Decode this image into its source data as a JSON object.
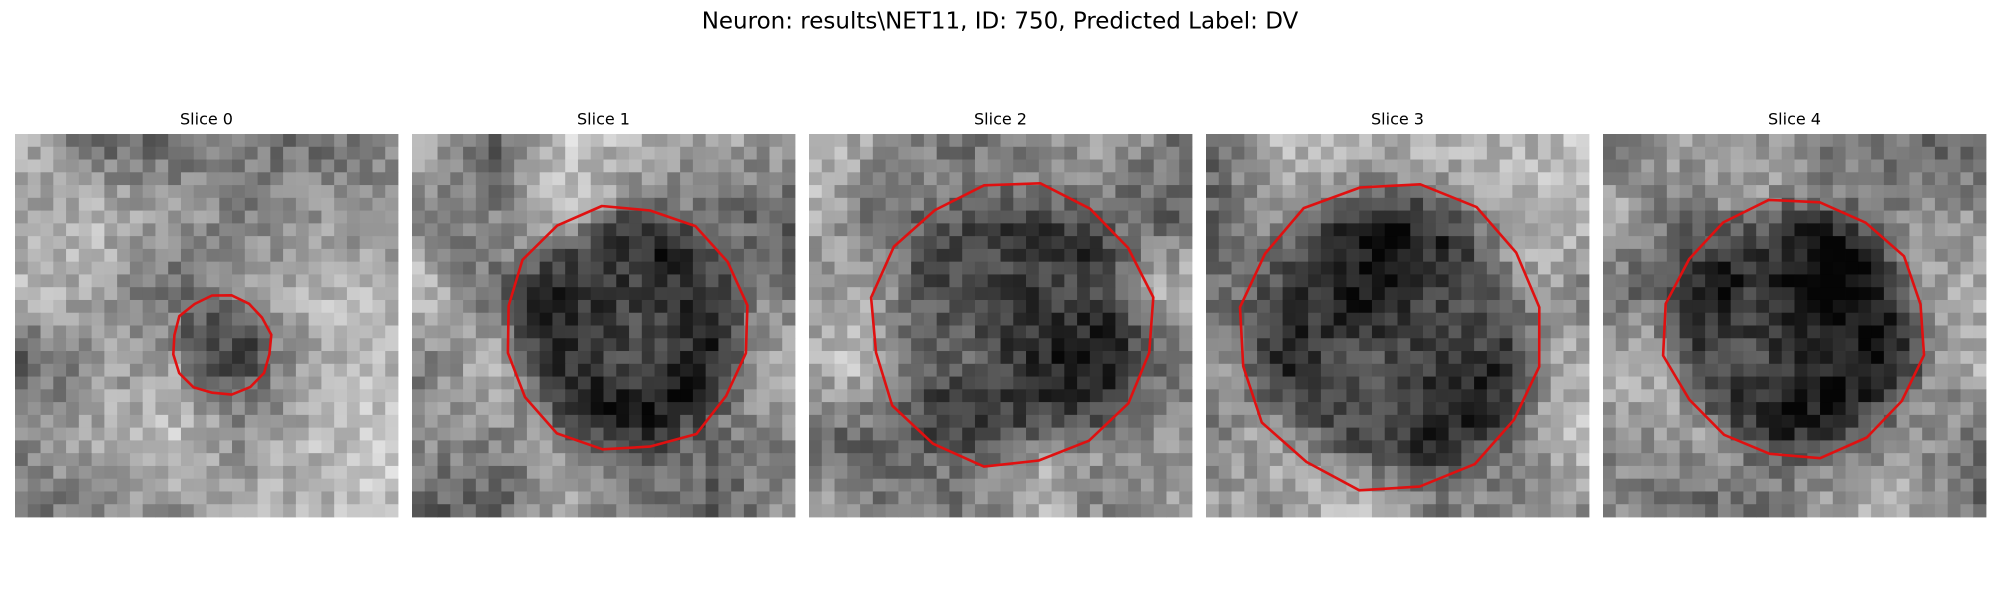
{
  "header": {
    "title": "Neuron: results\\NET11, ID: 750, Predicted Label: DV"
  },
  "panels": [
    {
      "title": "Slice 0"
    },
    {
      "title": "Slice 1"
    },
    {
      "title": "Slice 2"
    },
    {
      "title": "Slice 3"
    },
    {
      "title": "Slice 4"
    }
  ]
}
